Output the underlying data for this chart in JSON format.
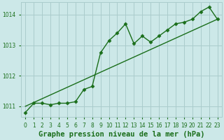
{
  "title": "Graphe pression niveau de la mer (hPa)",
  "bg_color": "#cce8e8",
  "grid_color": "#aacccc",
  "line_color": "#1a6e1a",
  "x_ticks": [
    0,
    1,
    2,
    3,
    4,
    5,
    6,
    7,
    8,
    9,
    10,
    11,
    12,
    13,
    14,
    15,
    16,
    17,
    18,
    19,
    20,
    21,
    22,
    23
  ],
  "y_ticks": [
    1011,
    1012,
    1013,
    1014
  ],
  "ylim": [
    1010.65,
    1014.4
  ],
  "xlim": [
    -0.5,
    23.5
  ],
  "series1_x": [
    0,
    1,
    2,
    3,
    4,
    5,
    6,
    7,
    8,
    9,
    10,
    11,
    12,
    13,
    14,
    15,
    16,
    17,
    18,
    19,
    20,
    21,
    22,
    23
  ],
  "series1_y": [
    1010.8,
    1011.1,
    1011.1,
    1011.05,
    1011.1,
    1011.1,
    1011.15,
    1011.55,
    1011.65,
    1012.75,
    1013.15,
    1013.4,
    1013.7,
    1013.05,
    1013.3,
    1013.1,
    1013.3,
    1013.5,
    1013.7,
    1013.75,
    1013.85,
    1014.1,
    1014.25,
    1013.85
  ],
  "series2_x": [
    0,
    23
  ],
  "series2_y": [
    1011.0,
    1013.85
  ],
  "title_color": "#1a6e1a",
  "title_fontsize": 7.5,
  "tick_fontsize": 5.5,
  "marker_style": "D",
  "marker_size": 2.5
}
